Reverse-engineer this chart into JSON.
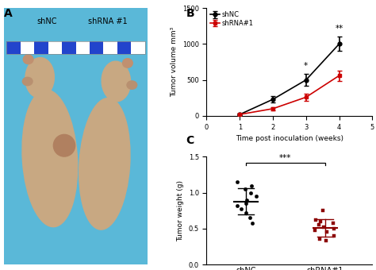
{
  "panel_B": {
    "weeks": [
      1,
      2,
      3,
      4
    ],
    "shNC_mean": [
      20,
      230,
      500,
      1000
    ],
    "shNC_err": [
      10,
      40,
      80,
      100
    ],
    "shRNA_mean": [
      20,
      100,
      260,
      560
    ],
    "shRNA_err": [
      8,
      25,
      50,
      70
    ],
    "shNC_color": "#000000",
    "shRNA_color": "#cc0000",
    "xlabel": "Time post inoculation (weeks)",
    "ylabel": "Tumor volume mm³",
    "xlim": [
      0,
      5
    ],
    "ylim": [
      0,
      1500
    ],
    "yticks": [
      0,
      500,
      1000,
      1500
    ],
    "xticks": [
      0,
      1,
      2,
      3,
      4,
      5
    ],
    "sig_week3": "*",
    "sig_week4": "**",
    "legend_shNC": "shNC",
    "legend_shRNA": "shRNA#1"
  },
  "panel_C": {
    "shNC_points": [
      1.15,
      1.1,
      1.05,
      1.0,
      0.95,
      0.9,
      0.85,
      0.82,
      0.78,
      0.72,
      0.65,
      0.58
    ],
    "shRNA_points": [
      0.75,
      0.62,
      0.6,
      0.58,
      0.55,
      0.52,
      0.5,
      0.48,
      0.45,
      0.4,
      0.36,
      0.33
    ],
    "shNC_color": "#000000",
    "shRNA_color": "#8B0000",
    "ylabel": "Tumor weight (g)",
    "ylim": [
      0.0,
      1.5
    ],
    "yticks": [
      0.0,
      0.5,
      1.0,
      1.5
    ],
    "sig_text": "***"
  },
  "panel_A_label": "A",
  "panel_B_label": "B",
  "panel_C_label": "C",
  "bg_color": "#ffffff",
  "photo_bg": "#5ab8d8",
  "ruler_colors": [
    "#2244cc",
    "#ffffff"
  ],
  "mouse_skin": "#c8a882",
  "shNC_label": "shNC",
  "shRNA_label": "shRNA #1"
}
